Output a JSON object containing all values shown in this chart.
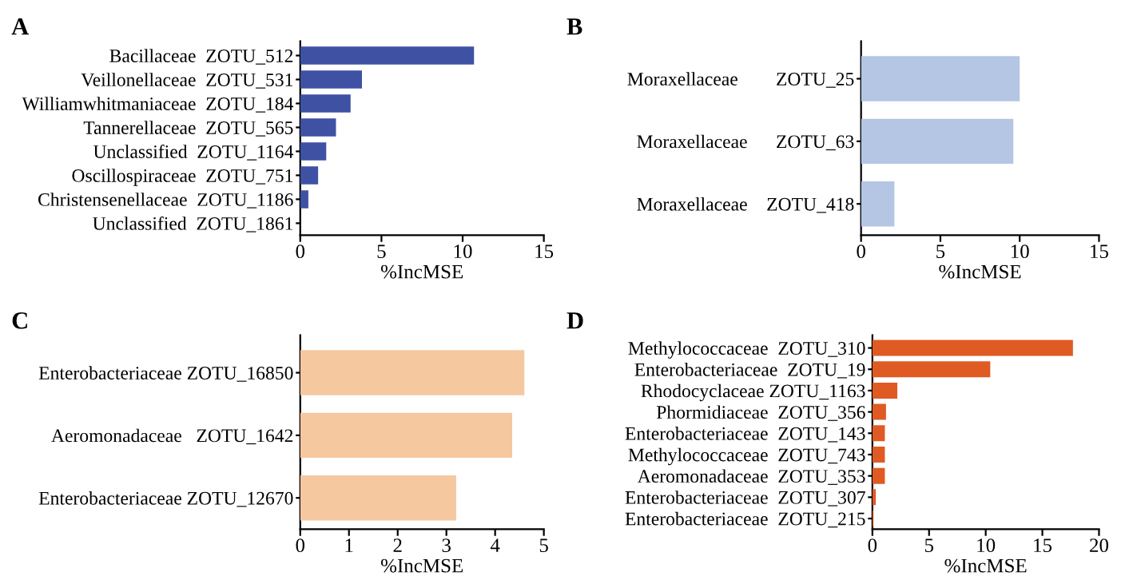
{
  "chart_data": [
    {
      "type": "bar",
      "orientation": "horizontal",
      "title": "A",
      "xlabel": "%IncMSE",
      "color": "#3f51a3",
      "categories": [
        "Bacillaceae  ZOTU_512",
        "Veillonellaceae  ZOTU_531",
        "Williamwhitmaniaceae  ZOTU_184",
        "Tannerellaceae  ZOTU_565",
        "Unclassified  ZOTU_1164",
        "Oscillospiraceae  ZOTU_751",
        "Christensenellaceae  ZOTU_1186",
        "Unclassified  ZOTU_1861"
      ],
      "values": [
        10.7,
        3.8,
        3.1,
        2.2,
        1.6,
        1.1,
        0.5,
        0
      ],
      "xlim": [
        0,
        15
      ],
      "xticks": [
        0,
        5,
        10,
        15
      ]
    },
    {
      "type": "bar",
      "orientation": "horizontal",
      "title": "B",
      "xlabel": "%IncMSE",
      "color": "#b4c6e4",
      "categories": [
        "Moraxellaceae        ZOTU_25",
        "Moraxellaceae      ZOTU_63",
        "Moraxellaceae    ZOTU_418"
      ],
      "values": [
        10.0,
        9.6,
        2.1
      ],
      "xlim": [
        0,
        15
      ],
      "xticks": [
        0,
        5,
        10,
        15
      ]
    },
    {
      "type": "bar",
      "orientation": "horizontal",
      "title": "C",
      "xlabel": "%IncMSE",
      "color": "#f5c8a0",
      "categories": [
        "Enterobacteriaceae ZOTU_16850",
        "Aeromonadaceae   ZOTU_1642",
        "Enterobacteriaceae ZOTU_12670"
      ],
      "values": [
        4.6,
        4.35,
        3.2
      ],
      "xlim": [
        0,
        5
      ],
      "xticks": [
        0,
        1,
        2,
        3,
        4,
        5
      ]
    },
    {
      "type": "bar",
      "orientation": "horizontal",
      "title": "D",
      "xlabel": "%IncMSE",
      "color": "#e05a24",
      "categories": [
        "Methylococcaceae  ZOTU_310",
        "Enterobacteriaceae  ZOTU_19",
        "Rhodocyclaceae ZOTU_1163",
        "Phormidiaceae  ZOTU_356",
        "Enterobacteriaceae  ZOTU_143",
        "Methylococcaceae  ZOTU_743",
        "Aeromonadaceae  ZOTU_353",
        "Enterobacteriaceae  ZOTU_307",
        "Enterobacteriaceae  ZOTU_215"
      ],
      "values": [
        17.7,
        10.4,
        2.2,
        1.2,
        1.1,
        1.1,
        1.1,
        0.3,
        0.1
      ],
      "xlim": [
        0,
        20
      ],
      "xticks": [
        0,
        5,
        10,
        15,
        20
      ]
    }
  ]
}
